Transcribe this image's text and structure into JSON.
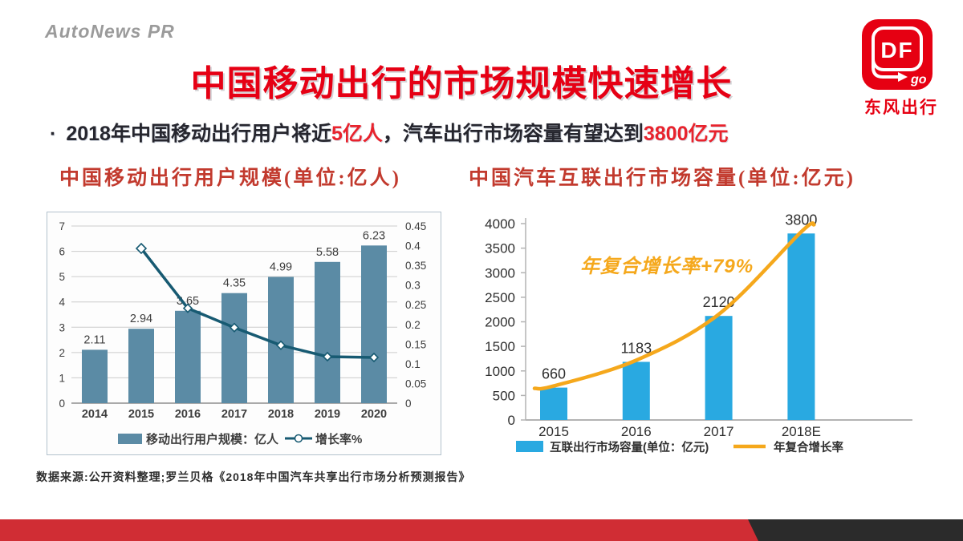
{
  "header": {
    "brand": "AutoNews PR",
    "title": "中国移动出行的市场规模快速增长",
    "title_color": "#e60014",
    "brand_color": "#9b9b9b"
  },
  "logo": {
    "df": "DF",
    "go": "go",
    "caption": "东风出行",
    "red": "#e60012"
  },
  "bullet": {
    "marker": "·",
    "segments": [
      {
        "text": "2018年中国移动出行用户将近",
        "emphasis": false
      },
      {
        "text": "5亿人",
        "emphasis": true
      },
      {
        "text": "，汽车出行市场容量有望达到",
        "emphasis": false
      },
      {
        "text": "3800亿元",
        "emphasis": true
      }
    ],
    "emphasis_color": "#e8232d"
  },
  "chart_data": [
    {
      "type": "bar",
      "title": "中国移动出行用户规模(单位:亿人)",
      "categories": [
        "2014",
        "2015",
        "2016",
        "2017",
        "2018",
        "2019",
        "2020"
      ],
      "series": [
        {
          "name": "移动出行用户规模：亿人",
          "type": "bar",
          "axis": "left",
          "color": "#5b8ba5",
          "values": [
            2.11,
            2.94,
            3.65,
            4.35,
            4.99,
            5.58,
            6.23
          ],
          "labels": [
            "2.11",
            "2.94",
            "3.65",
            "4.35",
            "4.99",
            "5.58",
            "6.23"
          ]
        },
        {
          "name": "增长率%",
          "type": "line",
          "axis": "right",
          "color": "#175a72",
          "marker": "diamond",
          "values": [
            null,
            0.393,
            0.241,
            0.192,
            0.147,
            0.118,
            0.116
          ]
        }
      ],
      "left_axis": {
        "min": 0,
        "max": 7,
        "ticks": [
          0,
          1,
          2,
          3,
          4,
          5,
          6,
          7
        ]
      },
      "right_axis": {
        "min": 0,
        "max": 0.45,
        "ticks": [
          0,
          0.05,
          0.1,
          0.15,
          0.2,
          0.25,
          0.3,
          0.35,
          0.4,
          0.45
        ]
      },
      "grid": true,
      "legend_position": "bottom"
    },
    {
      "type": "bar",
      "title": "中国汽车互联出行市场容量(单位:亿元)",
      "categories": [
        "2015",
        "2016",
        "2017",
        "2018E"
      ],
      "series": [
        {
          "name": "互联出行市场容量(单位：亿元)",
          "type": "bar",
          "color": "#29a9e1",
          "values": [
            660,
            1183,
            2120,
            3800
          ],
          "labels": [
            "660",
            "1183",
            "2120",
            "3800"
          ]
        },
        {
          "name": "年复合增长率",
          "type": "curve",
          "color": "#f5a81c",
          "follows": "bar-tops"
        }
      ],
      "y_axis": {
        "min": 0,
        "max": 4000,
        "ticks": [
          0,
          500,
          1000,
          1500,
          2000,
          2500,
          3000,
          3500,
          4000
        ]
      },
      "annotation": {
        "text": "年复合增长率+79%",
        "color": "#f5a81c"
      },
      "legend_position": "bottom"
    }
  ],
  "footer": {
    "source": "数据来源:公开资料整理;罗兰贝格《2018年中国汽车共享出行市场分析预测报告》"
  },
  "band": {
    "red": "#d02d34",
    "dark": "#2b2b2b"
  }
}
